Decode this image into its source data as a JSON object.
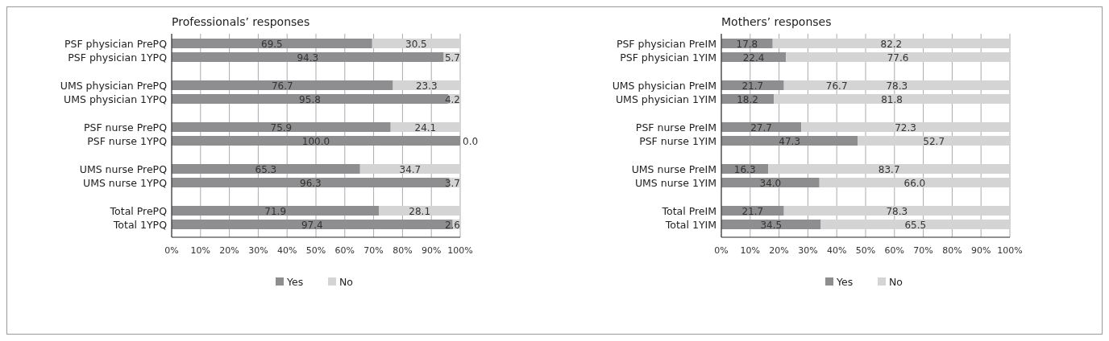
{
  "chart_data": [
    {
      "type": "bar",
      "orientation": "horizontal",
      "stacked": true,
      "title": "Professionals’ responses",
      "categories": [
        "PSF physician PrePQ",
        "PSF physician 1YPQ",
        "UMS physician PrePQ",
        "UMS physician 1YPQ",
        "PSF nurse PrePQ",
        "PSF nurse 1YPQ",
        "UMS nurse PrePQ",
        "UMS nurse 1YPQ",
        "Total PrePQ",
        "Total 1YPQ"
      ],
      "series": [
        {
          "name": "Yes",
          "color": "#8e8e90",
          "values": [
            69.5,
            94.3,
            76.7,
            95.8,
            75.9,
            100.0,
            65.3,
            96.3,
            71.9,
            97.4
          ],
          "value_labels": [
            "69.5",
            "94.3",
            "76.7",
            "95.8",
            "75.9",
            "100.0",
            "65.3",
            "96.3",
            "71.9",
            "97.4"
          ]
        },
        {
          "name": "No",
          "color": "#d4d4d5",
          "values": [
            30.5,
            5.7,
            23.3,
            4.2,
            24.1,
            0.0,
            34.7,
            3.7,
            28.1,
            2.6
          ],
          "value_labels": [
            "30.5",
            "5.7",
            "23.3",
            "4.2",
            "24.1",
            "0.0",
            "34.7",
            "3.7",
            "28.1",
            "2.6"
          ]
        }
      ],
      "xlim": [
        0,
        100
      ],
      "xticks": [
        {
          "value": 0,
          "label": "0%"
        },
        {
          "value": 10,
          "label": "10%"
        },
        {
          "value": 20,
          "label": "20%"
        },
        {
          "value": 30,
          "label": "30%"
        },
        {
          "value": 40,
          "label": "40%"
        },
        {
          "value": 50,
          "label": "50%"
        },
        {
          "value": 60,
          "label": "60%"
        },
        {
          "value": 70,
          "label": "70%"
        },
        {
          "value": 80,
          "label": "80%"
        },
        {
          "value": 90,
          "label": "90%"
        },
        {
          "value": 100,
          "label": "100%"
        }
      ],
      "grid": "x",
      "legend": "bottom"
    },
    {
      "type": "bar",
      "orientation": "horizontal",
      "stacked": true,
      "title": "Mothers’ responses",
      "categories": [
        "PSF physician PreIM",
        "PSF physician 1YIM",
        "UMS physician PreIM",
        "UMS physician 1YIM",
        "PSF nurse PreIM",
        "PSF nurse 1YIM",
        "UMS nurse PreIM",
        "UMS nurse 1YIM",
        "Total PreIM",
        "Total 1YIM"
      ],
      "series": [
        {
          "name": "Yes",
          "color": "#8e8e90",
          "values": [
            17.8,
            22.4,
            21.7,
            18.2,
            27.7,
            47.3,
            16.3,
            34.0,
            21.7,
            34.5
          ],
          "value_labels": [
            "17.8",
            "22.4",
            "21.7",
            "18.2",
            "27.7",
            "47.3",
            "16.3",
            "34.0",
            "21.7",
            "34.5"
          ]
        },
        {
          "name": "No",
          "color": "#d4d4d5",
          "values": [
            82.2,
            77.6,
            78.3,
            81.8,
            72.3,
            52.7,
            83.7,
            66.0,
            78.3,
            65.5
          ],
          "value_labels": [
            "82.2",
            "77.6",
            "78.3",
            "81.8",
            "72.3",
            "52.7",
            "83.7",
            "66.0",
            "78.3",
            "65.5"
          ]
        }
      ],
      "annotations": [
        "76.7"
      ],
      "xlim": [
        0,
        100
      ],
      "xticks": [
        {
          "value": 0,
          "label": "0%"
        },
        {
          "value": 10,
          "label": "10%"
        },
        {
          "value": 20,
          "label": "20%"
        },
        {
          "value": 30,
          "label": "30%"
        },
        {
          "value": 40,
          "label": "40%"
        },
        {
          "value": 50,
          "label": "50%"
        },
        {
          "value": 60,
          "label": "60%"
        },
        {
          "value": 70,
          "label": "70%"
        },
        {
          "value": 80,
          "label": "80%"
        },
        {
          "value": 90,
          "label": "90%"
        },
        {
          "value": 100,
          "label": "100%"
        }
      ],
      "grid": "x",
      "legend": "bottom"
    }
  ]
}
